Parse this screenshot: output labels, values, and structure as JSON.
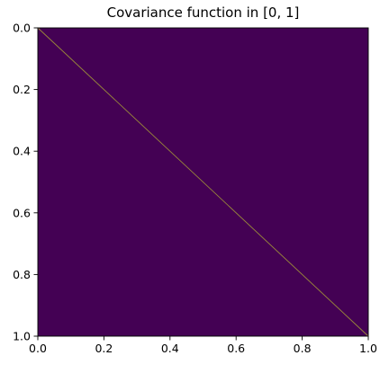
{
  "chart_data": {
    "type": "heatmap",
    "title": "Covariance function in [0, 1]",
    "xlabel": "",
    "ylabel": "",
    "xlim": [
      0.0,
      1.0
    ],
    "ylim": [
      1.0,
      0.0
    ],
    "y_inverted": true,
    "x_ticks": [
      0.0,
      0.2,
      0.4,
      0.6,
      0.8,
      1.0
    ],
    "y_ticks": [
      0.0,
      0.2,
      0.4,
      0.6,
      0.8,
      1.0
    ],
    "x_tick_labels": [
      "0.0",
      "0.2",
      "0.4",
      "0.6",
      "0.8",
      "1.0"
    ],
    "y_tick_labels": [
      "0.0",
      "0.2",
      "0.4",
      "0.6",
      "0.8",
      "1.0"
    ],
    "colormap": "viridis",
    "background_value": 0.0,
    "diagonal_value": 1.0,
    "background_color": "#440154",
    "diagonal_color": "#9a8a3a",
    "diagonal": {
      "from": [
        0.0,
        0.0
      ],
      "to": [
        1.0,
        1.0
      ]
    },
    "grid": false,
    "legend": "none"
  }
}
